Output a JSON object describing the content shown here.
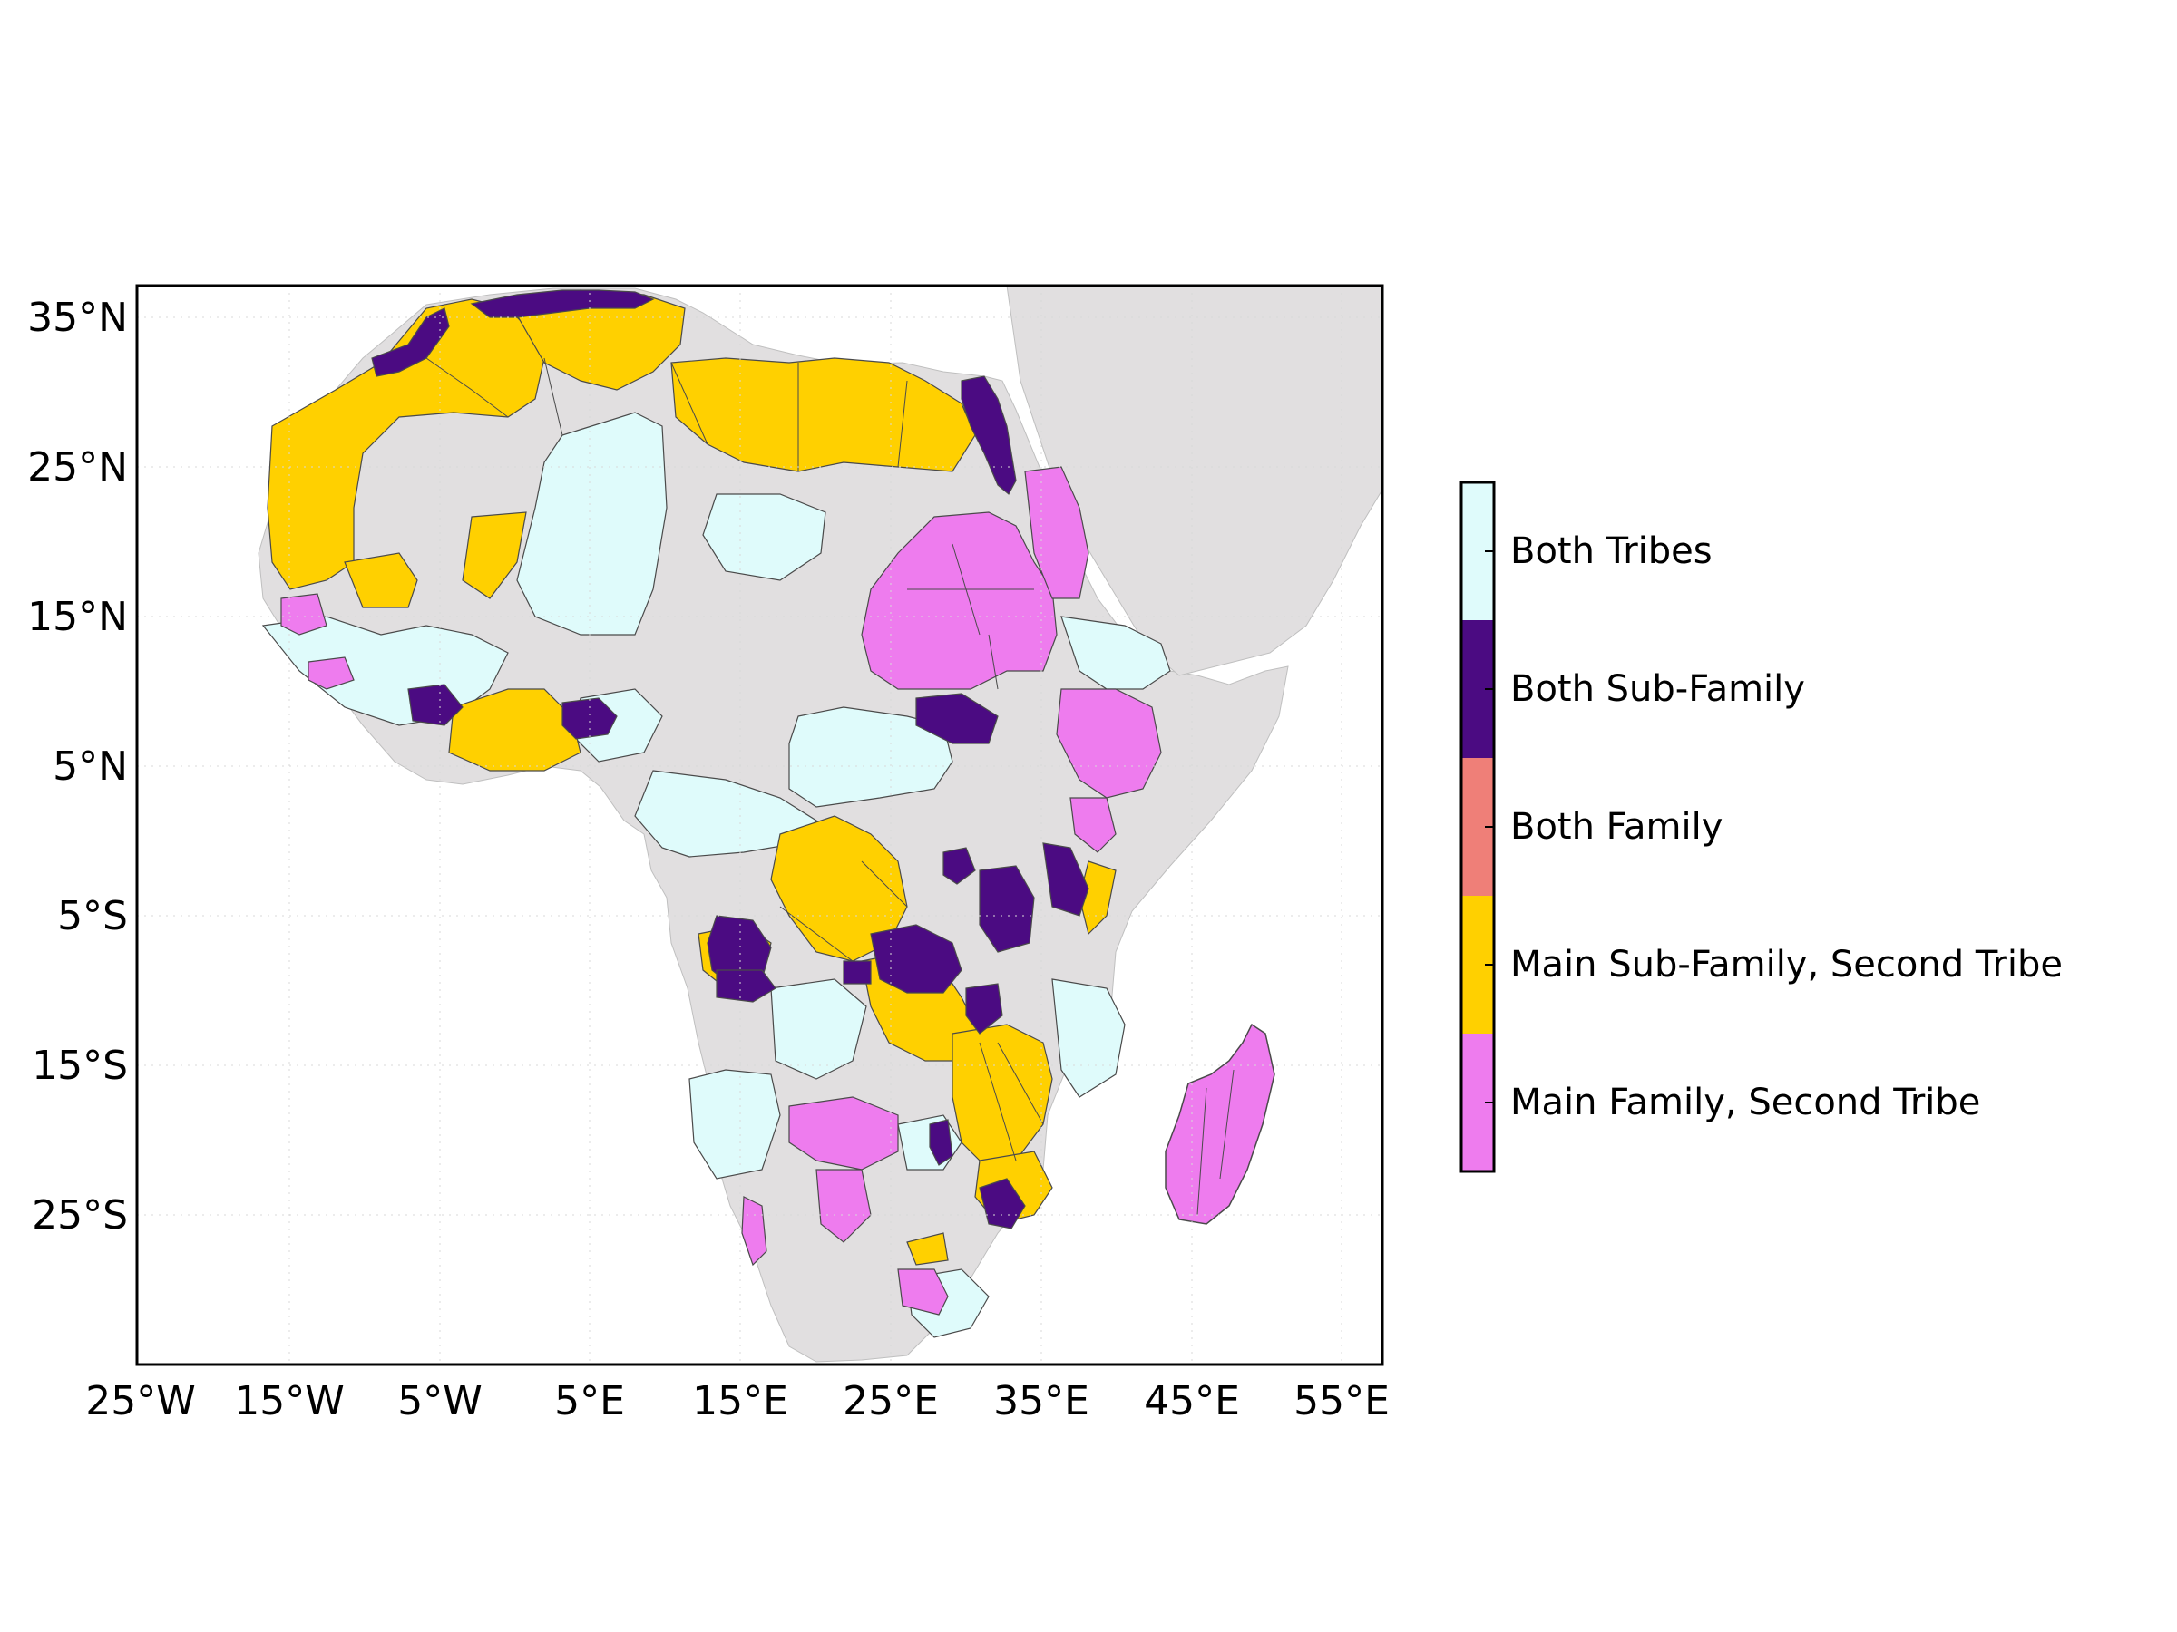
{
  "map": {
    "region": "Africa",
    "projection": "equirectangular",
    "lon_range": [
      -25,
      58
    ],
    "lat_range": [
      -37,
      37
    ],
    "ocean_color": "#ffffff",
    "land_color": "#e1dfe0",
    "border_color": "#4a4a4a",
    "lat_ticks": [
      {
        "value": 35,
        "label": "35°N"
      },
      {
        "value": 25,
        "label": "25°N"
      },
      {
        "value": 15,
        "label": "15°N"
      },
      {
        "value": 5,
        "label": "5°N"
      },
      {
        "value": -5,
        "label": "5°S"
      },
      {
        "value": -15,
        "label": "15°S"
      },
      {
        "value": -25,
        "label": "25°S"
      }
    ],
    "lon_ticks": [
      {
        "value": -25,
        "label": "25°W"
      },
      {
        "value": -15,
        "label": "15°W"
      },
      {
        "value": -5,
        "label": "5°W"
      },
      {
        "value": 5,
        "label": "5°E"
      },
      {
        "value": 15,
        "label": "15°E"
      },
      {
        "value": 25,
        "label": "25°E"
      },
      {
        "value": 35,
        "label": "35°E"
      },
      {
        "value": 45,
        "label": "45°E"
      },
      {
        "value": 55,
        "label": "55°E"
      }
    ]
  },
  "legend": {
    "placement": "right",
    "categories": [
      {
        "label": "Both Tribes",
        "color": "#dffbfb"
      },
      {
        "label": "Both Sub-Family",
        "color": "#4b0b82"
      },
      {
        "label": "Both Family",
        "color": "#ef7f78"
      },
      {
        "label": "Main Sub-Family, Second Tribe",
        "color": "#ffd000"
      },
      {
        "label": "Main Family, Second Tribe",
        "color": "#ee7cee"
      }
    ]
  }
}
